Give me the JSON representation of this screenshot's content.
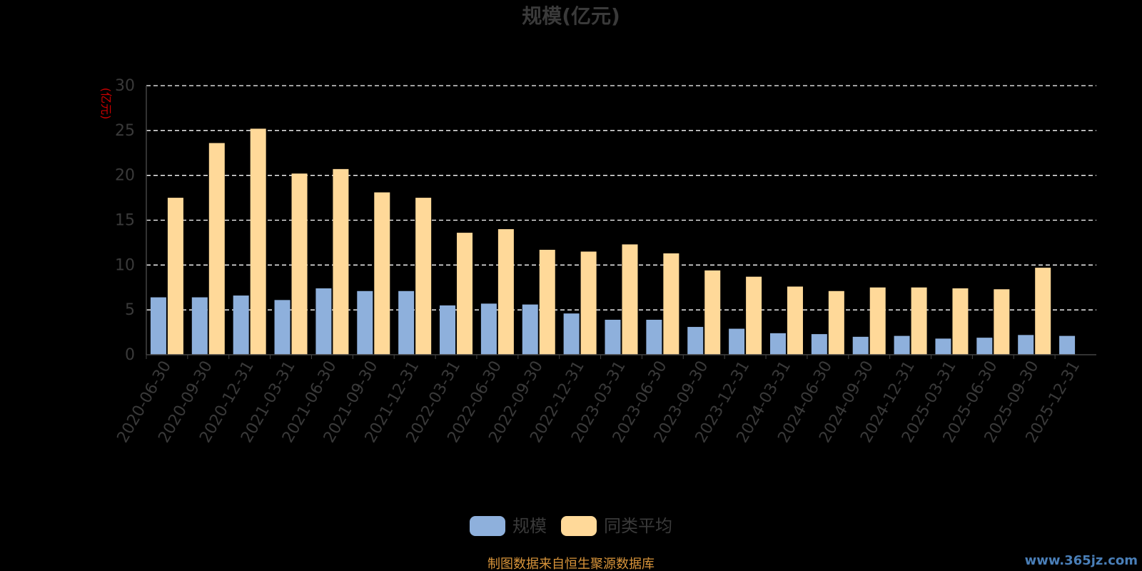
{
  "chart_data": {
    "type": "bar",
    "title": "规模(亿元)",
    "ylabel": "(亿元)",
    "ylim": [
      0,
      30
    ],
    "yticks": [
      0,
      5,
      10,
      15,
      20,
      25,
      30
    ],
    "grid": true,
    "legend_position": "bottom",
    "categories": [
      "2020-06-30",
      "2020-09-30",
      "2020-12-31",
      "2021-03-31",
      "2021-06-30",
      "2021-09-30",
      "2021-12-31",
      "2022-03-31",
      "2022-06-30",
      "2022-09-30",
      "2022-12-31",
      "2023-03-31",
      "2023-06-30",
      "2023-09-30",
      "2023-12-31",
      "2024-03-31",
      "2024-06-30",
      "2024-09-30",
      "2024-12-31",
      "2025-03-31",
      "2025-06-30",
      "2025-09-30",
      "2025-12-31"
    ],
    "series": [
      {
        "name": "规模",
        "color": "#8eb0dc",
        "values": [
          6.4,
          6.4,
          6.6,
          6.1,
          7.4,
          7.1,
          7.1,
          5.5,
          5.7,
          5.6,
          4.6,
          3.9,
          3.9,
          3.1,
          2.9,
          2.4,
          2.3,
          2.0,
          2.1,
          1.8,
          1.9,
          2.2,
          2.1
        ]
      },
      {
        "name": "同类平均",
        "color": "#ffd999",
        "values": [
          17.5,
          23.6,
          25.2,
          20.2,
          20.7,
          18.1,
          17.5,
          13.6,
          14.0,
          11.7,
          11.5,
          12.3,
          11.3,
          9.4,
          8.7,
          7.6,
          7.1,
          7.5,
          7.5,
          7.4,
          7.3,
          9.7,
          null
        ]
      }
    ]
  },
  "footer": {
    "source_text": "制图数据来自恒生聚源数据库",
    "watermark": "www.365jz.com"
  },
  "colors": {
    "title": "#3a3a3a",
    "axis_text": "#3a3a3a",
    "ylabel": "#cc0000",
    "grid": "#ffffff",
    "source": "#d8943a"
  }
}
